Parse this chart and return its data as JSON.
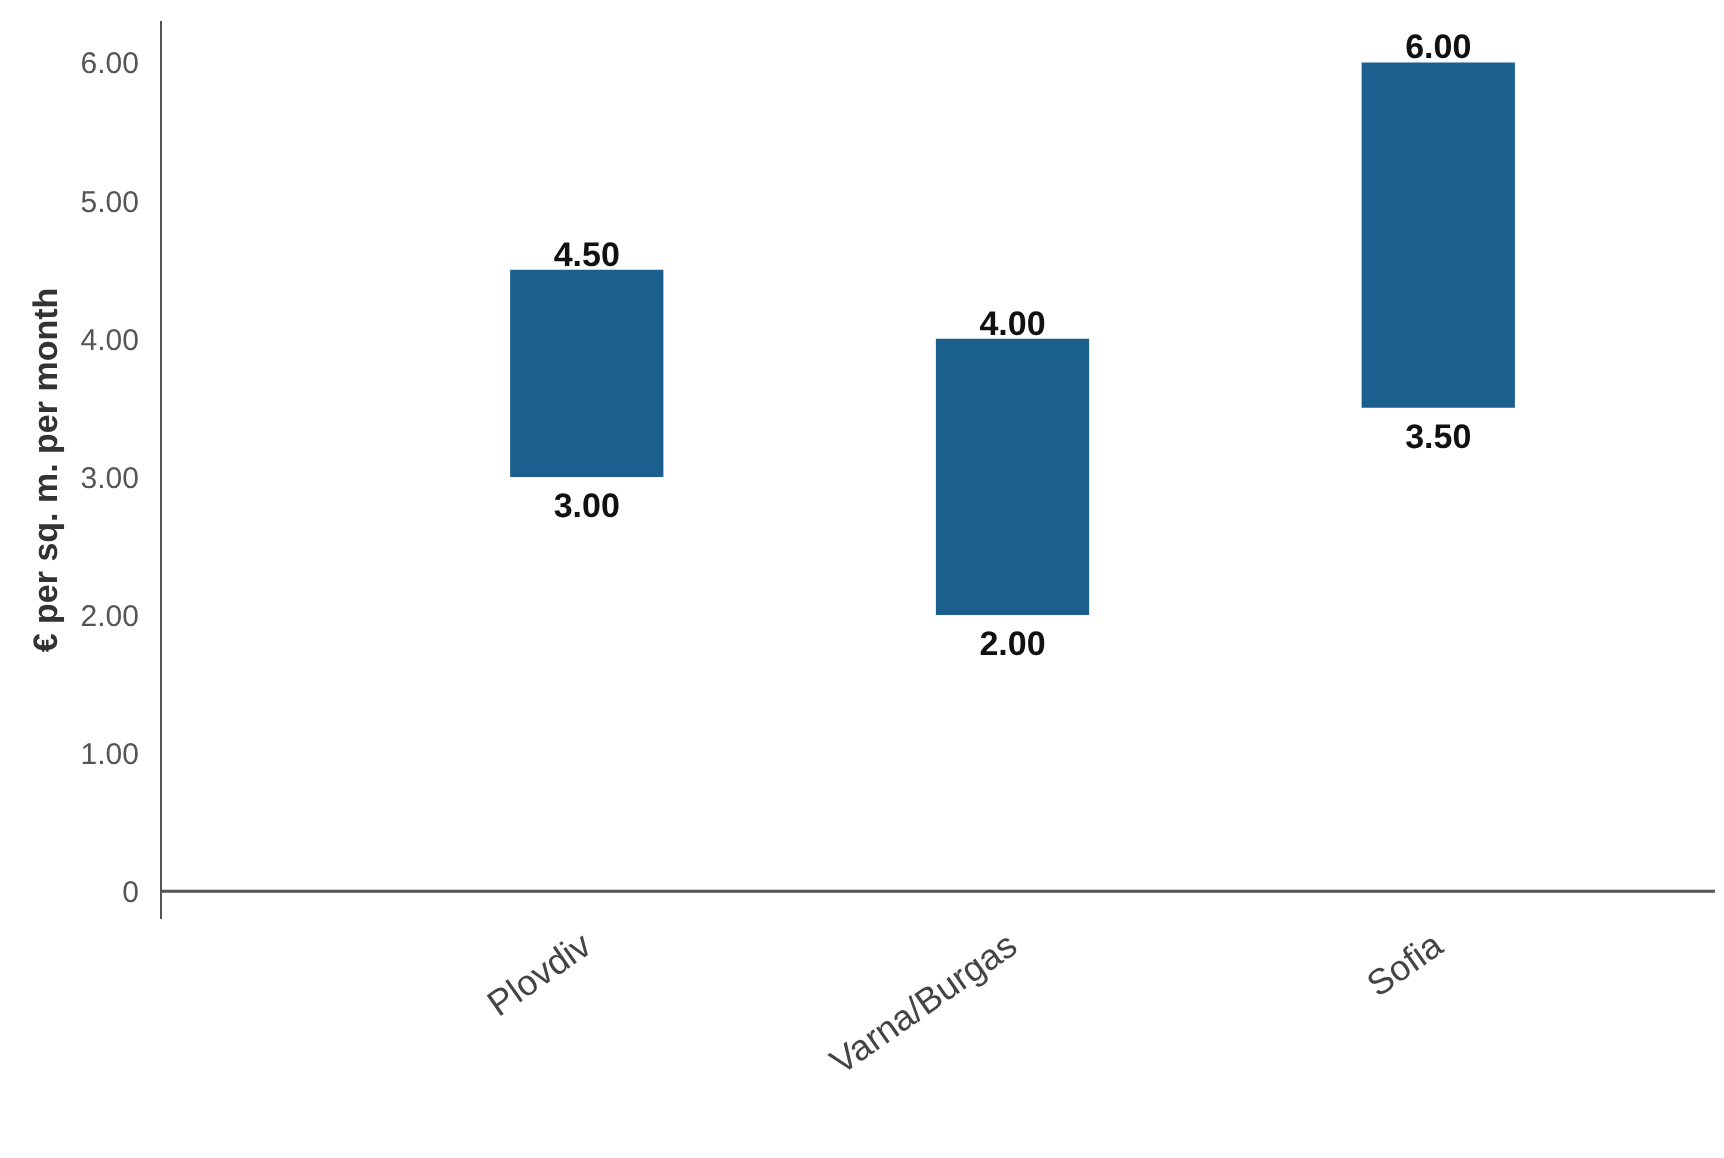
{
  "chart_data": {
    "type": "bar",
    "ylabel": "€ per sq. m. per month",
    "categories": [
      "Plovdiv",
      "Varna/Burgas",
      "Sofia"
    ],
    "base": [
      3.0,
      2.0,
      3.5
    ],
    "values": [
      1.5,
      2.0,
      2.5
    ],
    "color": "#1a5f8e",
    "ylim": [
      -0.2,
      6.3
    ],
    "yticks": [
      {
        "value": 0,
        "label": "0"
      },
      {
        "value": 1,
        "label": "1.00"
      },
      {
        "value": 2,
        "label": "2.00"
      },
      {
        "value": 3,
        "label": "3.00"
      },
      {
        "value": 4,
        "label": "4.00"
      },
      {
        "value": 5,
        "label": "5.00"
      },
      {
        "value": 6,
        "label": "6.00"
      }
    ],
    "grid": false,
    "annotations": [
      {
        "text": "4.50",
        "x": "Plovdiv",
        "y": 4.5
      },
      {
        "text": "3.00",
        "x": "Plovdiv",
        "y": 3.0
      },
      {
        "text": "4.00",
        "x": "Varna/Burgas",
        "y": 4.0
      },
      {
        "text": "2.00",
        "x": "Varna/Burgas",
        "y": 2.0
      },
      {
        "text": "6.00",
        "x": "Sofia",
        "y": 6.0
      },
      {
        "text": "3.50",
        "x": "Sofia",
        "y": 3.5
      }
    ]
  }
}
